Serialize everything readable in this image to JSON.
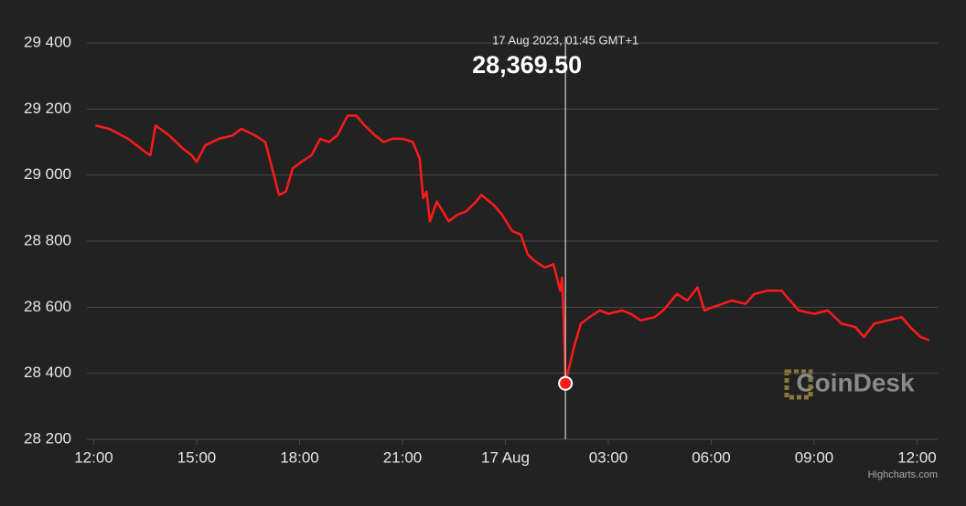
{
  "chart_data": {
    "type": "line",
    "tooltip": {
      "label": "17 Aug 2023, 01:45 GMT+1",
      "x": 13.75,
      "y": {
        "value": 28369.5,
        "label": "28,369.50"
      }
    },
    "watermark": "CoinDesk",
    "credits": "Highcharts.com",
    "xlim": [
      -0.2,
      24.6
    ],
    "xticks": [
      {
        "value": 0,
        "label": "12:00"
      },
      {
        "value": 3,
        "label": "15:00"
      },
      {
        "value": 6,
        "label": "18:00"
      },
      {
        "value": 9,
        "label": "21:00"
      },
      {
        "value": 12,
        "label": "17 Aug"
      },
      {
        "value": 15,
        "label": "03:00"
      },
      {
        "value": 18,
        "label": "06:00"
      },
      {
        "value": 21,
        "label": "09:00"
      },
      {
        "value": 24,
        "label": "12:00"
      }
    ],
    "ylim": [
      28200,
      29400
    ],
    "yticks": [
      {
        "value": 28200,
        "label": "28 200"
      },
      {
        "value": 28400,
        "label": "28 400"
      },
      {
        "value": 28600,
        "label": "28 600"
      },
      {
        "value": 28800,
        "label": "28 800"
      },
      {
        "value": 29000,
        "label": "29 000"
      },
      {
        "value": 29200,
        "label": "29 200"
      },
      {
        "value": 29400,
        "label": "29 400"
      }
    ],
    "grid": true,
    "series": [
      {
        "color": "#ff1a1a",
        "x": [
          0.05,
          0.45,
          1.0,
          1.5,
          1.65,
          1.8,
          2.2,
          2.6,
          2.85,
          3.0,
          3.25,
          3.65,
          4.05,
          4.3,
          4.7,
          5.0,
          5.25,
          5.4,
          5.6,
          5.8,
          6.05,
          6.35,
          6.6,
          6.85,
          7.1,
          7.4,
          7.65,
          7.9,
          8.2,
          8.45,
          8.7,
          9.0,
          9.3,
          9.5,
          9.6,
          9.7,
          9.8,
          10.0,
          10.35,
          10.6,
          10.85,
          11.15,
          11.3,
          11.65,
          11.9,
          12.2,
          12.45,
          12.65,
          12.85,
          13.15,
          13.4,
          13.6,
          13.65,
          13.7,
          13.75,
          14.0,
          14.2,
          14.45,
          14.75,
          15.0,
          15.4,
          15.65,
          15.95,
          16.35,
          16.6,
          17.0,
          17.3,
          17.6,
          17.8,
          18.05,
          18.6,
          19.0,
          19.25,
          19.65,
          20.05,
          20.3,
          20.55,
          21.0,
          21.4,
          21.8,
          22.2,
          22.45,
          22.75,
          23.15,
          23.55,
          23.8,
          24.1,
          24.35
        ],
        "values": [
          29150,
          29140,
          29110,
          29070,
          29060,
          29150,
          29120,
          29080,
          29060,
          29040,
          29090,
          29110,
          29120,
          29140,
          29120,
          29100,
          29000,
          28940,
          28950,
          29020,
          29040,
          29060,
          29110,
          29100,
          29120,
          29180,
          29180,
          29150,
          29120,
          29100,
          29110,
          29110,
          29100,
          29050,
          28930,
          28950,
          28860,
          28920,
          28860,
          28880,
          28890,
          28920,
          28940,
          28910,
          28880,
          28830,
          28820,
          28760,
          28740,
          28720,
          28730,
          28650,
          28690,
          28560,
          28370,
          28480,
          28550,
          28570,
          28590,
          28580,
          28590,
          28580,
          28560,
          28570,
          28590,
          28640,
          28620,
          28660,
          28590,
          28600,
          28620,
          28610,
          28640,
          28650,
          28650,
          28620,
          28590,
          28580,
          28590,
          28550,
          28540,
          28510,
          28550,
          28560,
          28570,
          28540,
          28510,
          28500
        ]
      }
    ]
  }
}
